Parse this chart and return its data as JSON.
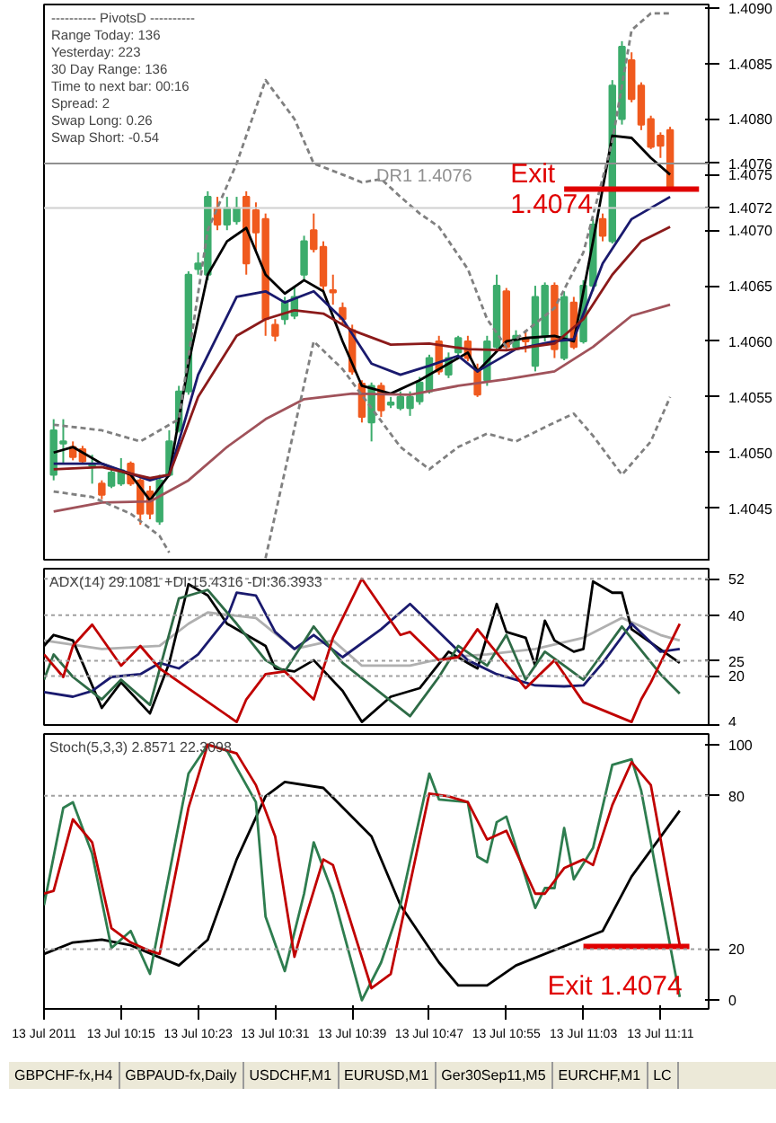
{
  "chart_data": [
    {
      "type": "candlestick",
      "tick_labels": "y",
      "x": [
        "2011-07-13T10:08",
        "2011-07-13T10:09",
        "2011-07-13T10:10",
        "2011-07-13T10:11",
        "2011-07-13T10:12",
        "2011-07-13T10:13",
        "2011-07-13T10:14",
        "2011-07-13T10:15",
        "2011-07-13T10:16",
        "2011-07-13T10:17",
        "2011-07-13T10:18",
        "2011-07-13T10:19",
        "2011-07-13T10:20",
        "2011-07-13T10:21",
        "2011-07-13T10:22",
        "2011-07-13T10:23",
        "2011-07-13T10:24",
        "2011-07-13T10:25",
        "2011-07-13T10:26",
        "2011-07-13T10:27",
        "2011-07-13T10:28",
        "2011-07-13T10:29",
        "2011-07-13T10:30",
        "2011-07-13T10:31",
        "2011-07-13T10:32",
        "2011-07-13T10:33",
        "2011-07-13T10:34",
        "2011-07-13T10:35",
        "2011-07-13T10:36",
        "2011-07-13T10:37",
        "2011-07-13T10:38",
        "2011-07-13T10:39",
        "2011-07-13T10:40",
        "2011-07-13T10:41",
        "2011-07-13T10:42",
        "2011-07-13T10:43",
        "2011-07-13T10:44",
        "2011-07-13T10:45",
        "2011-07-13T10:46",
        "2011-07-13T10:47",
        "2011-07-13T10:48",
        "2011-07-13T10:49",
        "2011-07-13T10:50",
        "2011-07-13T10:51",
        "2011-07-13T10:52",
        "2011-07-13T10:53",
        "2011-07-13T10:54",
        "2011-07-13T10:55",
        "2011-07-13T10:56",
        "2011-07-13T10:57",
        "2011-07-13T10:58",
        "2011-07-13T10:59",
        "2011-07-13T11:00",
        "2011-07-13T11:01",
        "2011-07-13T11:02",
        "2011-07-13T11:03",
        "2011-07-13T11:04",
        "2011-07-13T11:05",
        "2011-07-13T11:06",
        "2011-07-13T11:07",
        "2011-07-13T11:08",
        "2011-07-13T11:09",
        "2011-07-13T11:10",
        "2011-07-13T11:11",
        "2011-07-13T11:12"
      ],
      "ohlc": [
        [
          1.4048,
          1.4053,
          1.40475,
          1.4052
        ],
        [
          1.40508,
          1.4053,
          1.4049,
          1.4051
        ],
        [
          1.40505,
          1.4051,
          1.40493,
          1.40496
        ],
        [
          1.40503,
          1.40506,
          1.4049,
          1.40492
        ],
        [
          1.40488,
          1.40498,
          1.40472,
          1.40489
        ],
        [
          1.40472,
          1.40475,
          1.40458,
          1.40462
        ],
        [
          1.4047,
          1.40485,
          1.40468,
          1.40482
        ],
        [
          1.40472,
          1.40495,
          1.4047,
          1.40484
        ],
        [
          1.4049,
          1.40492,
          1.4047,
          1.40472
        ],
        [
          1.40475,
          1.40478,
          1.40435,
          1.40445
        ],
        [
          1.40465,
          1.4047,
          1.4044,
          1.40445
        ],
        [
          1.40438,
          1.4048,
          1.40435,
          1.40475
        ],
        [
          1.4048,
          1.4052,
          1.40478,
          1.4051
        ],
        [
          1.4052,
          1.4056,
          1.40518,
          1.40555
        ],
        [
          1.40555,
          1.40663,
          1.40552,
          1.4066
        ],
        [
          1.40665,
          1.4068,
          1.4066,
          1.4067
        ],
        [
          1.4066,
          1.40735,
          1.40655,
          1.4073
        ],
        [
          1.4072,
          1.4073,
          1.407,
          1.40705
        ],
        [
          1.40705,
          1.4073,
          1.407,
          1.4072
        ],
        [
          1.40708,
          1.4073,
          1.40705,
          1.4072
        ],
        [
          1.4073,
          1.40735,
          1.4066,
          1.4067
        ],
        [
          1.40718,
          1.40725,
          1.4068,
          1.40698
        ],
        [
          1.4071,
          1.40715,
          1.40605,
          1.4062
        ],
        [
          1.40615,
          1.4062,
          1.406,
          1.40605
        ],
        [
          1.4062,
          1.4064,
          1.40615,
          1.40635
        ],
        [
          1.40623,
          1.4065,
          1.4062,
          1.4064
        ],
        [
          1.4066,
          1.40695,
          1.40655,
          1.4069
        ],
        [
          1.407,
          1.40715,
          1.4068,
          1.40683
        ],
        [
          1.40685,
          1.4069,
          1.40645,
          1.4065
        ],
        [
          1.40646,
          1.4066,
          1.40633,
          1.40644
        ],
        [
          1.4063,
          1.40635,
          1.40615,
          1.4062
        ],
        [
          1.4061,
          1.40615,
          1.4057,
          1.40573
        ],
        [
          1.40562,
          1.40565,
          1.40527,
          1.40532
        ],
        [
          1.40527,
          1.40563,
          1.4051,
          1.4056
        ],
        [
          1.4056,
          1.40563,
          1.40532,
          1.40538
        ],
        [
          1.40543,
          1.4055,
          1.4054,
          1.40545
        ],
        [
          1.4054,
          1.40555,
          1.40538,
          1.4055
        ],
        [
          1.4054,
          1.40555,
          1.40533,
          1.4055
        ],
        [
          1.40546,
          1.40568,
          1.40543,
          1.40563
        ],
        [
          1.40555,
          1.40588,
          1.40553,
          1.40585
        ],
        [
          1.406,
          1.40605,
          1.4057,
          1.40573
        ],
        [
          1.4057,
          1.4059,
          1.40567,
          1.40585
        ],
        [
          1.4059,
          1.40605,
          1.40587,
          1.40603
        ],
        [
          1.406,
          1.40605,
          1.40582,
          1.40585
        ],
        [
          1.40575,
          1.4058,
          1.4055,
          1.40552
        ],
        [
          1.40565,
          1.40605,
          1.4056,
          1.406
        ],
        [
          1.40595,
          1.4066,
          1.40593,
          1.4065
        ],
        [
          1.40645,
          1.40648,
          1.40592,
          1.40595
        ],
        [
          1.40595,
          1.4061,
          1.40593,
          1.40605
        ],
        [
          1.40603,
          1.4061,
          1.4059,
          1.406
        ],
        [
          1.40578,
          1.4065,
          1.40573,
          1.4064
        ],
        [
          1.40605,
          1.40653,
          1.406,
          1.4065
        ],
        [
          1.4065,
          1.40653,
          1.40585,
          1.40593
        ],
        [
          1.40585,
          1.40645,
          1.40583,
          1.4064
        ],
        [
          1.40635,
          1.4064,
          1.40593,
          1.40595
        ],
        [
          1.406,
          1.40655,
          1.40598,
          1.4065
        ],
        [
          1.4065,
          1.4071,
          1.40645,
          1.40705
        ],
        [
          1.4071,
          1.40715,
          1.4069,
          1.40695
        ],
        [
          1.4069,
          1.40835,
          1.40688,
          1.4083
        ],
        [
          1.408,
          1.4087,
          1.40795,
          1.40865
        ],
        [
          1.40853,
          1.4086,
          1.40815,
          1.40818
        ],
        [
          1.4083,
          1.40833,
          1.4079,
          1.40795
        ],
        [
          1.408,
          1.40803,
          1.40773,
          1.40775
        ],
        [
          1.40785,
          1.40788,
          1.40765,
          1.40776
        ],
        [
          1.4079,
          1.40793,
          1.40735,
          1.40736
        ]
      ],
      "colors": [
        "#3cac6c",
        "#3cac6c",
        "#f05a1e",
        "#f05a1e",
        "#3cac6c",
        "#f05a1e",
        "#3cac6c",
        "#3cac6c",
        "#f05a1e",
        "#f05a1e",
        "#f05a1e",
        "#3cac6c",
        "#3cac6c",
        "#3cac6c",
        "#3cac6c",
        "#3cac6c",
        "#3cac6c",
        "#f05a1e",
        "#3cac6c",
        "#3cac6c",
        "#f05a1e",
        "#f05a1e",
        "#f05a1e",
        "#f05a1e",
        "#3cac6c",
        "#3cac6c",
        "#3cac6c",
        "#f05a1e",
        "#f05a1e",
        "#f05a1e",
        "#f05a1e",
        "#f05a1e",
        "#f05a1e",
        "#3cac6c",
        "#f05a1e",
        "#3cac6c",
        "#3cac6c",
        "#3cac6c",
        "#3cac6c",
        "#3cac6c",
        "#f05a1e",
        "#3cac6c",
        "#3cac6c",
        "#f05a1e",
        "#f05a1e",
        "#3cac6c",
        "#3cac6c",
        "#f05a1e",
        "#3cac6c",
        "#f05a1e",
        "#3cac6c",
        "#3cac6c",
        "#f05a1e",
        "#3cac6c",
        "#f05a1e",
        "#3cac6c",
        "#3cac6c",
        "#f05a1e",
        "#3cac6c",
        "#3cac6c",
        "#f05a1e",
        "#f05a1e",
        "#f05a1e",
        "#f05a1e",
        "#f05a1e"
      ],
      "series": [
        {
          "type": "line",
          "color": "#000000",
          "line_style": "solid",
          "x": [
            "2011-07-13T10:08",
            "2011-07-13T10:10",
            "2011-07-13T10:13",
            "2011-07-13T10:16",
            "2011-07-13T10:18",
            "2011-07-13T10:20",
            "2011-07-13T10:22",
            "2011-07-13T10:24",
            "2011-07-13T10:26",
            "2011-07-13T10:28",
            "2011-07-13T10:30",
            "2011-07-13T10:32",
            "2011-07-13T10:34",
            "2011-07-13T10:36",
            "2011-07-13T10:38",
            "2011-07-13T10:40",
            "2011-07-13T10:43",
            "2011-07-13T10:46",
            "2011-07-13T10:49",
            "2011-07-13T10:51",
            "2011-07-13T10:52",
            "2011-07-13T10:55",
            "2011-07-13T10:57",
            "2011-07-13T11:00",
            "2011-07-13T11:02",
            "2011-07-13T11:04",
            "2011-07-13T11:06",
            "2011-07-13T11:08",
            "2011-07-13T11:10",
            "2011-07-13T11:12"
          ],
          "values": [
            1.405,
            1.40505,
            1.4049,
            1.4048,
            1.40457,
            1.4048,
            1.4058,
            1.4066,
            1.4069,
            1.40702,
            1.4066,
            1.40643,
            1.40655,
            1.40645,
            1.406,
            1.4056,
            1.40553,
            1.40565,
            1.4058,
            1.4059,
            1.40573,
            1.406,
            1.40603,
            1.40605,
            1.406,
            1.4069,
            1.40785,
            1.40783,
            1.40765,
            1.4075
          ]
        },
        {
          "type": "line",
          "color": "#1a1a6e",
          "line_style": "solid",
          "x": [
            "2011-07-13T10:08",
            "2011-07-13T10:13",
            "2011-07-13T10:18",
            "2011-07-13T10:20",
            "2011-07-13T10:23",
            "2011-07-13T10:27",
            "2011-07-13T10:30",
            "2011-07-13T10:32",
            "2011-07-13T10:35",
            "2011-07-13T10:38",
            "2011-07-13T10:41",
            "2011-07-13T10:44",
            "2011-07-13T10:47",
            "2011-07-13T10:50",
            "2011-07-13T10:52",
            "2011-07-13T10:56",
            "2011-07-13T11:00",
            "2011-07-13T11:02",
            "2011-07-13T11:05",
            "2011-07-13T11:08",
            "2011-07-13T11:12"
          ],
          "values": [
            1.4049,
            1.4049,
            1.40475,
            1.4048,
            1.4057,
            1.4064,
            1.40645,
            1.40635,
            1.40645,
            1.4062,
            1.4058,
            1.4057,
            1.40578,
            1.40587,
            1.40573,
            1.40593,
            1.406,
            1.40602,
            1.4067,
            1.4071,
            1.4073
          ]
        },
        {
          "type": "line",
          "color": "#8b1a1a",
          "line_style": "solid",
          "x": [
            "2011-07-13T10:08",
            "2011-07-13T10:13",
            "2011-07-13T10:18",
            "2011-07-13T10:20",
            "2011-07-13T10:23",
            "2011-07-13T10:27",
            "2011-07-13T10:30",
            "2011-07-13T10:33",
            "2011-07-13T10:36",
            "2011-07-13T10:39",
            "2011-07-13T10:43",
            "2011-07-13T10:47",
            "2011-07-13T10:51",
            "2011-07-13T10:55",
            "2011-07-13T11:00",
            "2011-07-13T11:03",
            "2011-07-13T11:06",
            "2011-07-13T11:09",
            "2011-07-13T11:12"
          ],
          "values": [
            1.40485,
            1.40487,
            1.40477,
            1.4048,
            1.4055,
            1.40605,
            1.4062,
            1.40628,
            1.40625,
            1.4061,
            1.40597,
            1.40598,
            1.40593,
            1.40592,
            1.40598,
            1.4062,
            1.4066,
            1.4069,
            1.40703
          ]
        },
        {
          "type": "line",
          "color": "#a0525a",
          "line_style": "solid",
          "x": [
            "2011-07-13T10:08",
            "2011-07-13T10:13",
            "2011-07-13T10:18",
            "2011-07-13T10:22",
            "2011-07-13T10:26",
            "2011-07-13T10:30",
            "2011-07-13T10:34",
            "2011-07-13T10:39",
            "2011-07-13T10:45",
            "2011-07-13T10:50",
            "2011-07-13T10:55",
            "2011-07-13T11:00",
            "2011-07-13T11:04",
            "2011-07-13T11:08",
            "2011-07-13T11:12"
          ],
          "values": [
            1.40447,
            1.40455,
            1.40456,
            1.40475,
            1.40505,
            1.4053,
            1.40548,
            1.40553,
            1.40552,
            1.4056,
            1.40566,
            1.40573,
            1.40595,
            1.40623,
            1.40633
          ]
        },
        {
          "type": "line",
          "color": "#808080",
          "line_style": "dashed",
          "x": [
            "2011-07-13T10:08",
            "2011-07-13T10:13",
            "2011-07-13T10:17",
            "2011-07-13T10:21",
            "2011-07-13T10:24",
            "2011-07-13T10:27",
            "2011-07-13T10:30",
            "2011-07-13T10:33",
            "2011-07-13T10:35",
            "2011-07-13T10:38",
            "2011-07-13T10:40",
            "2011-07-13T10:42",
            "2011-07-13T10:44",
            "2011-07-13T10:46",
            "2011-07-13T10:48",
            "2011-07-13T10:51",
            "2011-07-13T10:53",
            "2011-07-13T10:55",
            "2011-07-13T11:00",
            "2011-07-13T11:03",
            "2011-07-13T11:06",
            "2011-07-13T11:08",
            "2011-07-13T11:10",
            "2011-07-13T11:12"
          ],
          "values": [
            1.40525,
            1.4052,
            1.4051,
            1.4053,
            1.407,
            1.4076,
            1.40835,
            1.408,
            1.4076,
            1.4075,
            1.40743,
            1.40746,
            1.4073,
            1.40715,
            1.40703,
            1.40665,
            1.4062,
            1.40595,
            1.4063,
            1.4068,
            1.4078,
            1.4088,
            1.40895,
            1.40895
          ]
        },
        {
          "type": "line",
          "color": "#808080",
          "line_style": "dashed",
          "x": [
            "2011-07-13T10:08",
            "2011-07-13T10:12",
            "2011-07-13T10:16",
            "2011-07-13T10:19",
            "2011-07-13T10:20",
            "2011-07-13T10:21",
            "2011-07-13T10:30",
            "2011-07-13T10:35",
            "2011-07-13T10:38",
            "2011-07-13T10:41",
            "2011-07-13T10:44",
            "2011-07-13T10:47",
            "2011-07-13T10:50",
            "2011-07-13T10:53",
            "2011-07-13T10:56",
            "2011-07-13T11:00",
            "2011-07-13T11:02",
            "2011-07-13T11:04",
            "2011-07-13T11:07",
            "2011-07-13T11:10",
            "2011-07-13T11:12"
          ],
          "values": [
            1.40465,
            1.4046,
            1.40445,
            1.40425,
            1.4041,
            null,
            1.40405,
            1.406,
            1.40575,
            1.4054,
            1.40505,
            1.40485,
            1.40505,
            1.40517,
            1.4051,
            1.40527,
            1.40535,
            1.40515,
            1.4048,
            1.4051,
            1.4055
          ]
        },
        {
          "type": "line",
          "name": "Exit 1.4074",
          "color": "#e00000",
          "line_style": "solid",
          "x": [
            "2011-07-13T11:01",
            "2011-07-13T11:15"
          ],
          "values": [
            1.40737,
            1.40737
          ]
        }
      ],
      "xlim": [
        "2011-07-13T10:07",
        "2011-07-13T11:16"
      ],
      "ylim": [
        1.40402,
        1.40903
      ],
      "yticks": [
        1.4045,
        {
          "value": 1.405,
          "label": "1.4050"
        },
        1.4055,
        {
          "value": 1.406,
          "label": "1.4060"
        },
        1.4065,
        {
          "value": 1.407,
          "label": "1.4070"
        },
        1.4072,
        1.4075,
        1.4076,
        {
          "value": 1.408,
          "label": "1.4080"
        },
        1.4085,
        {
          "value": 1.409,
          "label": "1.4090"
        }
      ],
      "ref_lines": [
        {
          "axis": "y",
          "value": 1.4076,
          "label": "DR1  1.4076",
          "color": "#909090",
          "line_style": "solid"
        },
        {
          "axis": "y",
          "value": 1.4072,
          "color": "#d0d0d0",
          "line_style": "solid"
        }
      ],
      "annotations": [
        "---------- PivotsD ----------",
        "Range  Today:  136",
        "Yesterday:  223",
        "30 Day Range:  136",
        "Time to next bar:  00:16",
        "Spread:  2",
        "Swap  Long:  0.26",
        "Swap  Short:  -0.54"
      ]
    },
    {
      "type": "line",
      "tick_labels": "y",
      "title": "ADX(14) 29.1081 +DI:15.4316 -DI:36.3933",
      "series": [
        {
          "type": "line",
          "color": "#b0b0b0",
          "line_style": "solid",
          "x": [
            "2011-07-13T10:07",
            "2011-07-13T10:13",
            "2011-07-13T10:19",
            "2011-07-13T10:22",
            "2011-07-13T10:24",
            "2011-07-13T10:29",
            "2011-07-13T10:33",
            "2011-07-13T10:37",
            "2011-07-13T10:40",
            "2011-07-13T10:45",
            "2011-07-13T10:49",
            "2011-07-13T10:53",
            "2011-07-13T10:58",
            "2011-07-13T11:03",
            "2011-07-13T11:07",
            "2011-07-13T11:11",
            "2011-07-13T11:13"
          ],
          "values": [
            31.7,
            28.9,
            29.9,
            37.2,
            40.9,
            39.1,
            28.9,
            31.7,
            23.4,
            23.4,
            26.2,
            27.1,
            28.9,
            32.6,
            39.1,
            33.5,
            31.7
          ]
        },
        {
          "type": "line",
          "color": "#000000",
          "line_style": "solid",
          "x": [
            "2011-07-13T10:07",
            "2011-07-13T10:08",
            "2011-07-13T10:10",
            "2011-07-13T10:11",
            "2011-07-13T10:13",
            "2011-07-13T10:15",
            "2011-07-13T10:18",
            "2011-07-13T10:20",
            "2011-07-13T10:22",
            "2011-07-13T10:24",
            "2011-07-13T10:26",
            "2011-07-13T10:30",
            "2011-07-13T10:31",
            "2011-07-13T10:33",
            "2011-07-13T10:35",
            "2011-07-13T10:38",
            "2011-07-13T10:40",
            "2011-07-13T10:43",
            "2011-07-13T10:46",
            "2011-07-13T10:49",
            "2011-07-13T10:51",
            "2011-07-13T10:52",
            "2011-07-13T10:54",
            "2011-07-13T10:55",
            "2011-07-13T10:57",
            "2011-07-13T10:58",
            "2011-07-13T10:59",
            "2011-07-13T11:00",
            "2011-07-13T11:02",
            "2011-07-13T11:03",
            "2011-07-13T11:04",
            "2011-07-13T11:06",
            "2011-07-13T11:07",
            "2011-07-13T11:08",
            "2011-07-13T11:13"
          ],
          "values": [
            29.9,
            33.5,
            31.7,
            24.3,
            9.5,
            17.9,
            7.7,
            24.3,
            50.2,
            46.5,
            37.2,
            29.9,
            22.5,
            21.5,
            25.2,
            15.1,
            4.9,
            13.2,
            16,
            28,
            24.3,
            22.5,
            43.7,
            34.5,
            32.6,
            23.4,
            38.2,
            31.7,
            28,
            28.9,
            51.1,
            47.4,
            47.4,
            35.4,
            24.3
          ]
        },
        {
          "type": "line",
          "color": "#1a1a6e",
          "line_style": "solid",
          "x": [
            "2011-07-13T10:07",
            "2011-07-13T10:10",
            "2011-07-13T10:12",
            "2011-07-13T10:14",
            "2011-07-13T10:17",
            "2011-07-13T10:19",
            "2011-07-13T10:21",
            "2011-07-13T10:23",
            "2011-07-13T10:26",
            "2011-07-13T10:27",
            "2011-07-13T10:29",
            "2011-07-13T10:31",
            "2011-07-13T10:33",
            "2011-07-13T10:35",
            "2011-07-13T10:38",
            "2011-07-13T10:42",
            "2011-07-13T10:45",
            "2011-07-13T10:48",
            "2011-07-13T10:51",
            "2011-07-13T10:54",
            "2011-07-13T10:56",
            "2011-07-13T10:58",
            "2011-07-13T11:01",
            "2011-07-13T11:03",
            "2011-07-13T11:05",
            "2011-07-13T11:08",
            "2011-07-13T11:11",
            "2011-07-13T11:13"
          ],
          "values": [
            14.7,
            13.2,
            15.1,
            19.7,
            20.6,
            24.3,
            22.5,
            27.1,
            39.1,
            47.4,
            46.5,
            34.5,
            28.9,
            33.5,
            26.2,
            35.4,
            43.7,
            34.5,
            25.2,
            20.6,
            18.8,
            16.9,
            16.6,
            16.9,
            24.3,
            37.2,
            28,
            28.9
          ]
        },
        {
          "type": "line",
          "color": "#2e6b46",
          "line_style": "solid",
          "x": [
            "2011-07-13T10:07",
            "2011-07-13T10:08",
            "2011-07-13T10:10",
            "2011-07-13T10:13",
            "2011-07-13T10:15",
            "2011-07-13T10:18",
            "2011-07-13T10:21",
            "2011-07-13T10:23",
            "2011-07-13T10:24",
            "2011-07-13T10:27",
            "2011-07-13T10:30",
            "2011-07-13T10:32",
            "2011-07-13T10:35",
            "2011-07-13T10:38",
            "2011-07-13T10:45",
            "2011-07-13T10:48",
            "2011-07-13T10:50",
            "2011-07-13T10:53",
            "2011-07-13T10:55",
            "2011-07-13T10:57",
            "2011-07-13T10:59",
            "2011-07-13T11:01",
            "2011-07-13T11:03",
            "2011-07-13T11:07",
            "2011-07-13T11:11",
            "2011-07-13T11:13"
          ],
          "values": [
            18.8,
            27.1,
            19.7,
            12.3,
            18.8,
            10.5,
            45.5,
            47.4,
            48.3,
            37.2,
            25.2,
            21.5,
            36.3,
            24.3,
            6.8,
            19.7,
            29.9,
            23.4,
            33.5,
            18.8,
            28,
            23.4,
            18.8,
            36.3,
            20.6,
            14.2
          ]
        },
        {
          "type": "line",
          "color": "#c00000",
          "line_style": "solid",
          "x": [
            "2011-07-13T10:07",
            "2011-07-13T10:09",
            "2011-07-13T10:10",
            "2011-07-13T10:12",
            "2011-07-13T10:15",
            "2011-07-13T10:17",
            "2011-07-13T10:19",
            "2011-07-13T10:27",
            "2011-07-13T10:28",
            "2011-07-13T10:30",
            "2011-07-13T10:32",
            "2011-07-13T10:35",
            "2011-07-13T10:37",
            "2011-07-13T10:40",
            "2011-07-13T10:44",
            "2011-07-13T10:45",
            "2011-07-13T10:48",
            "2011-07-13T10:50",
            "2011-07-13T10:52",
            "2011-07-13T10:57",
            "2011-07-13T11:00",
            "2011-07-13T11:03",
            "2011-07-13T11:08",
            "2011-07-13T11:09",
            "2011-07-13T11:10",
            "2011-07-13T11:13"
          ],
          "values": [
            27.1,
            19.7,
            29.9,
            36.9,
            23.4,
            29.9,
            22.5,
            4.9,
            12.3,
            20.6,
            21.5,
            12.3,
            32.6,
            52,
            33.5,
            34.5,
            25.2,
            26.2,
            35.4,
            16,
            25.2,
            11.4,
            4.9,
            12.3,
            17.9,
            37.2
          ]
        }
      ],
      "xlim": [
        "2011-07-13T10:07",
        "2011-07-13T11:16"
      ],
      "ylim": [
        3.3,
        55.3
      ],
      "yticks": [
        4,
        20,
        25,
        40,
        52
      ],
      "ref_lines": [
        {
          "axis": "y",
          "value": 52,
          "color": "#a0a0a0",
          "line_style": "dotted"
        },
        {
          "axis": "y",
          "value": 40,
          "color": "#a0a0a0",
          "line_style": "dotted"
        },
        {
          "axis": "y",
          "value": 25,
          "color": "#a0a0a0",
          "line_style": "dotted"
        },
        {
          "axis": "y",
          "value": 20,
          "color": "#a0a0a0",
          "line_style": "dotted"
        }
      ]
    },
    {
      "type": "line",
      "title": "Stoch(5,3,3) 2.8571 22.3098",
      "series": [
        {
          "type": "line",
          "color": "#000000",
          "line_style": "solid",
          "x": [
            "2011-07-13T10:07",
            "2011-07-13T10:10",
            "2011-07-13T10:13",
            "2011-07-13T10:16",
            "2011-07-13T10:21",
            "2011-07-13T10:24",
            "2011-07-13T10:27",
            "2011-07-13T10:30",
            "2011-07-13T10:32",
            "2011-07-13T10:36",
            "2011-07-13T10:41",
            "2011-07-13T10:44",
            "2011-07-13T10:48",
            "2011-07-13T10:50",
            "2011-07-13T10:53",
            "2011-07-13T10:56",
            "2011-07-13T11:02",
            "2011-07-13T11:05",
            "2011-07-13T11:08",
            "2011-07-13T11:13"
          ],
          "values": [
            18.1,
            22.6,
            23.7,
            21.5,
            13.6,
            23.7,
            55.1,
            79.8,
            85.4,
            83.1,
            64.1,
            37.2,
            14.8,
            5.8,
            5.8,
            13.6,
            22.6,
            27.1,
            48.4,
            74.2
          ]
        },
        {
          "type": "line",
          "color": "#2e7d4f",
          "line_style": "solid",
          "x": [
            "2011-07-13T10:07",
            "2011-07-13T10:09",
            "2011-07-13T10:10",
            "2011-07-13T10:12",
            "2011-07-13T10:14",
            "2011-07-13T10:16",
            "2011-07-13T10:18",
            "2011-07-13T10:22",
            "2011-07-13T10:24",
            "2011-07-13T10:26",
            "2011-07-13T10:29",
            "2011-07-13T10:30",
            "2011-07-13T10:32",
            "2011-07-13T10:34",
            "2011-07-13T10:35",
            "2011-07-13T10:37",
            "2011-07-13T10:40",
            "2011-07-13T10:42",
            "2011-07-13T10:44",
            "2011-07-13T10:47",
            "2011-07-13T10:48",
            "2011-07-13T10:51",
            "2011-07-13T10:52",
            "2011-07-13T10:53",
            "2011-07-13T10:54",
            "2011-07-13T10:55",
            "2011-07-13T10:58",
            "2011-07-13T10:59",
            "2011-07-13T11:00",
            "2011-07-13T11:01",
            "2011-07-13T11:02",
            "2011-07-13T11:04",
            "2011-07-13T11:06",
            "2011-07-13T11:08",
            "2011-07-13T11:09",
            "2011-07-13T11:13"
          ],
          "values": [
            37.2,
            75.3,
            77.5,
            57.3,
            20.4,
            27.1,
            10.3,
            88.7,
            100,
            97.7,
            77.5,
            32.7,
            11.4,
            41.7,
            61.8,
            41.7,
            0,
            14.8,
            37.2,
            88.7,
            78.6,
            77.5,
            56.2,
            54,
            69.7,
            71.9,
            36.1,
            43.9,
            43.9,
            67.4,
            47.3,
            59.6,
            92.1,
            94.3,
            82,
            1.3
          ]
        },
        {
          "type": "line",
          "color": "#c00000",
          "line_style": "solid",
          "x": [
            "2011-07-13T10:07",
            "2011-07-13T10:08",
            "2011-07-13T10:10",
            "2011-07-13T10:12",
            "2011-07-13T10:14",
            "2011-07-13T10:16",
            "2011-07-13T10:18",
            "2011-07-13T10:19",
            "2011-07-13T10:22",
            "2011-07-13T10:24",
            "2011-07-13T10:27",
            "2011-07-13T10:29",
            "2011-07-13T10:31",
            "2011-07-13T10:33",
            "2011-07-13T10:34",
            "2011-07-13T10:36",
            "2011-07-13T10:37",
            "2011-07-13T10:41",
            "2011-07-13T10:43",
            "2011-07-13T10:47",
            "2011-07-13T10:49",
            "2011-07-13T10:51",
            "2011-07-13T10:53",
            "2011-07-13T10:55",
            "2011-07-13T10:58",
            "2011-07-13T10:59",
            "2011-07-13T11:01",
            "2011-07-13T11:03",
            "2011-07-13T11:04",
            "2011-07-13T11:06",
            "2011-07-13T11:08",
            "2011-07-13T11:10",
            "2011-07-13T11:13"
          ],
          "values": [
            41.7,
            42.8,
            70.8,
            61.8,
            28.2,
            22.6,
            19.3,
            18.1,
            75.3,
            100,
            96.6,
            84.2,
            64.1,
            17,
            30.4,
            55.1,
            52.9,
            4.7,
            10.3,
            80.9,
            79.8,
            77.5,
            62.9,
            66.3,
            41.7,
            41.7,
            51.7,
            55.1,
            52.9,
            76.4,
            93.2,
            84.2,
            21.5
          ]
        },
        {
          "type": "line",
          "name": "Exit 1.4074",
          "color": "#e00000",
          "line_style": "solid",
          "x": [
            "2011-07-13T11:03",
            "2011-07-13T11:14"
          ],
          "values": [
            21,
            21
          ]
        }
      ],
      "xlim": [
        "2011-07-13T10:07",
        "2011-07-13T11:16"
      ],
      "xticks": [
        {
          "value": "2011-07-13T10:07",
          "label": "13 Jul 2011"
        },
        {
          "value": "2011-07-13T10:15",
          "label": "13 Jul 10:15"
        },
        {
          "value": "2011-07-13T10:23",
          "label": "13 Jul 10:23"
        },
        {
          "value": "2011-07-13T10:31",
          "label": "13 Jul 10:31"
        },
        {
          "value": "2011-07-13T10:39",
          "label": "13 Jul 10:39"
        },
        {
          "value": "2011-07-13T10:47",
          "label": "13 Jul 10:47"
        },
        {
          "value": "2011-07-13T10:55",
          "label": "13 Jul 10:55"
        },
        {
          "value": "2011-07-13T11:03",
          "label": "13 Jul 11:03"
        },
        {
          "value": "2011-07-13T11:11",
          "label": "13 Jul 11:11"
        }
      ],
      "ylim": [
        -3.4,
        104.2
      ],
      "yticks": [
        0,
        20,
        80,
        100
      ],
      "ref_lines": [
        {
          "axis": "y",
          "value": 80,
          "color": "#a0a0a0",
          "line_style": "dotted"
        },
        {
          "axis": "y",
          "value": 20,
          "color": "#a0a0a0",
          "line_style": "dotted"
        }
      ]
    },
    {
      "type": "other",
      "annotations": [
        "GBPCHF-fx,H4",
        "GBPAUD-fx,Daily",
        "USDCHF,M1",
        "EURUSD,M1",
        "Ger30Sep11,M5",
        "EURCHF,M1",
        "LC"
      ]
    }
  ]
}
